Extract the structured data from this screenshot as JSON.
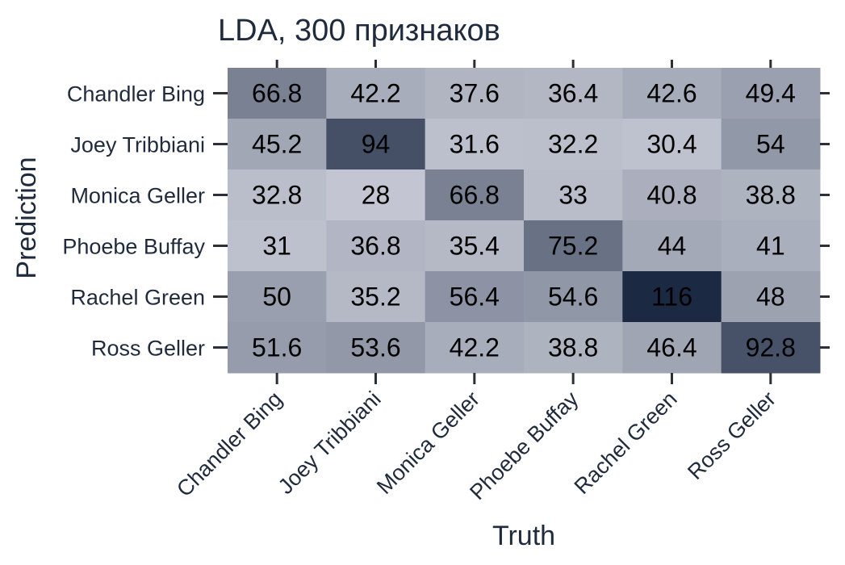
{
  "chart_data": {
    "type": "heatmap",
    "title": "LDA, 300 признаков",
    "xlabel": "Truth",
    "ylabel": "Prediction",
    "x_categories": [
      "Chandler Bing",
      "Joey Tribbiani",
      "Monica Geller",
      "Phoebe Buffay",
      "Rachel Green",
      "Ross Geller"
    ],
    "y_categories": [
      "Chandler Bing",
      "Joey Tribbiani",
      "Monica Geller",
      "Phoebe Buffay",
      "Rachel Green",
      "Ross Geller"
    ],
    "values": [
      [
        "66.8",
        "42.2",
        "37.6",
        "36.4",
        "42.6",
        "49.4"
      ],
      [
        "45.2",
        "94",
        "31.6",
        "32.2",
        "30.4",
        "54"
      ],
      [
        "32.8",
        "28",
        "66.8",
        "33",
        "40.8",
        "38.8"
      ],
      [
        "31",
        "36.8",
        "35.4",
        "75.2",
        "44",
        "41"
      ],
      [
        "50",
        "35.2",
        "56.4",
        "54.6",
        "116",
        "48"
      ],
      [
        "51.6",
        "53.6",
        "42.2",
        "38.8",
        "46.4",
        "92.8"
      ]
    ],
    "color_low": "#c3c6d2",
    "color_high": "#1b2942",
    "value_range": [
      28,
      116
    ],
    "grid": false
  }
}
